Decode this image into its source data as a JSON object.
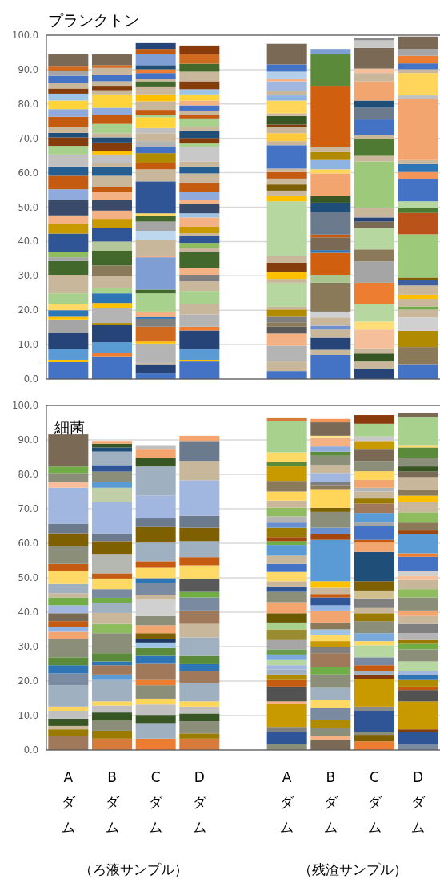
{
  "chart_data": [
    {
      "type": "bar",
      "title": "プランクトン",
      "stacked": true,
      "grid": "y",
      "ylim": [
        0,
        100
      ],
      "yticks": [
        {
          "value": 0,
          "label": "0.0"
        },
        {
          "value": 10,
          "label": "10.0"
        },
        {
          "value": 20,
          "label": "20.0"
        },
        {
          "value": 30,
          "label": "30.0"
        },
        {
          "value": 40,
          "label": "40.0"
        },
        {
          "value": 50,
          "label": "50.0"
        },
        {
          "value": 60,
          "label": "60.0"
        },
        {
          "value": 70,
          "label": "70.0"
        },
        {
          "value": 80,
          "label": "80.0"
        },
        {
          "value": 90,
          "label": "90.0"
        },
        {
          "value": 100,
          "label": "100.0"
        }
      ],
      "categories": [
        null,
        null,
        null,
        null,
        null,
        null,
        null,
        null,
        null
      ],
      "series": [
        {
          "values": [
            4.9,
            6.6,
            1.6,
            5.1,
            null,
            2.3,
            7.0,
            3.1,
            4.3
          ],
          "colors": [
            "#4472c4",
            "#4472c4",
            "#4472c4",
            "#4472c4",
            null,
            "#4472c4",
            "#4472c4",
            "#264478",
            "#4472c4"
          ]
        },
        {
          "values": [
            0.7,
            1.0,
            2.7,
            0.5,
            null,
            2.8,
            1.5,
            2.0,
            5.0
          ],
          "colors": [
            "#ffc000",
            "#ed7d31",
            "#264478",
            "#ffc000",
            null,
            "#c9b79c",
            "#c9b79c",
            "#c9b79c",
            "#8b7a5a"
          ]
        },
        {
          "values": [
            3.2,
            3.1,
            0.4,
            3.1,
            null,
            4.6,
            3.5,
            2.3,
            4.7
          ],
          "colors": [
            "#5b9bd5",
            "#5b9bd5",
            "#c9b79c",
            "#5b9bd5",
            null,
            "#b4b4b4",
            "#264478",
            "#375623",
            "#b08a00"
          ]
        },
        {
          "values": [
            4.6,
            5.0,
            5.6,
            5.4,
            null,
            3.5,
            2.4,
            1.5,
            3.9
          ],
          "colors": [
            "#264478",
            "#264478",
            "#b4b4b4",
            "#264478",
            null,
            "#f4b183",
            "#c9b79c",
            "#c9b79c",
            "#d0d0d0"
          ]
        },
        {
          "values": [
            3.9,
            0.6,
            0.6,
            1.1,
            null,
            2.0,
            1.1,
            5.5,
            2.3
          ],
          "colors": [
            "#a5a5a5",
            "#b08a00",
            "#ffc000",
            "#ed7d31",
            null,
            "#595959",
            "#6f8fd0",
            "#f4bf9a",
            "#c9b79c"
          ]
        },
        {
          "values": [
            1.0,
            4.3,
            4.3,
            3.6,
            null,
            1.3,
            2.4,
            2.3,
            0.9
          ],
          "colors": [
            "#ffc000",
            "#b4b4b4",
            "#d06a1e",
            "#b4b4b4",
            null,
            "#8b7a5a",
            "#c9b79c",
            "#ffde7a",
            "#70ad47"
          ]
        },
        {
          "values": [
            1.7,
            1.5,
            2.3,
            3.0,
            null,
            1.8,
            1.7,
            5.1,
            2.2
          ],
          "colors": [
            "#2e75b6",
            "#ffc000",
            "#808080",
            "#c9b79c",
            null,
            "#7f7f7f",
            "#d0d0d0",
            "#b7d7a0",
            "#c9b79c"
          ]
        },
        {
          "values": [
            1.8,
            2.8,
            0.5,
            3.8,
            null,
            1.9,
            8.4,
            6.2,
            1.2
          ],
          "colors": [
            "#ffd966",
            "#2e75b6",
            "#2e75b6",
            "#a9d18e",
            null,
            "#b08a00",
            "#8b7a5a",
            "#ed7d31",
            "#ffc000"
          ]
        },
        {
          "values": [
            3.1,
            1.5,
            1.6,
            2.8,
            null,
            0.8,
            2.3,
            6.2,
            2.7
          ],
          "colors": [
            "#a9d18e",
            "#a9d18e",
            "#f4b183",
            "#c9b79c",
            null,
            "#c9b79c",
            "#a9c48e",
            "#a5a5a5",
            "#c9b79c"
          ]
        },
        {
          "values": [
            5.4,
            3.5,
            5.3,
            1.9,
            null,
            7.0,
            6.4,
            3.5,
            1.5
          ],
          "colors": [
            "#c9b79c",
            "#c9b79c",
            "#a9d18e",
            "#808080",
            null,
            "#b7d7a0",
            "#d06010",
            "#8b7a5a",
            "#3b5fa0"
          ]
        },
        {
          "values": [
            4.0,
            3.1,
            1.1,
            1.9,
            null,
            1.1,
            0.8,
            6.2,
            0.8
          ],
          "colors": [
            "#43682b",
            "#8b7a5a",
            "#43682b",
            "#f4b183",
            null,
            "#c9b79c",
            "#2e75b6",
            "#b7d7a0",
            "#7f6000"
          ]
        },
        {
          "values": [
            1.1,
            4.3,
            9.4,
            4.7,
            null,
            2.0,
            3.7,
            1.9,
            12.6
          ],
          "colors": [
            "#a5a5a5",
            "#43682b",
            "#7f9fd4",
            "#43682b",
            null,
            "#ffc000",
            "#7a6a55",
            "#7a6a55",
            "#9dc97b"
          ]
        },
        {
          "values": [
            1.5,
            2.7,
            0.3,
            1.2,
            null,
            2.7,
            0.8,
            1.2,
            6.2
          ],
          "colors": [
            "#8fbc5f",
            "#b4c79a",
            "#f4b183",
            "#c9b79c",
            null,
            "#843c0c",
            "#c55a11",
            "#264478",
            "#b9531a"
          ]
        },
        {
          "values": [
            5.4,
            3.9,
            4.7,
            1.5,
            null,
            1.9,
            6.6,
            2.9,
            1.6
          ],
          "colors": [
            "#2f5597",
            "#2f5597",
            "#c9b79c",
            "#8fbc5f",
            null,
            "#c9b79c",
            "#6b7a8c",
            "#c9b79c",
            "#4e7a34"
          ]
        },
        {
          "values": [
            2.8,
            2.7,
            2.7,
            2.0,
            null,
            16.0,
            2.7,
            13.4,
            1.8
          ],
          "colors": [
            "#c99a00",
            "#c99a00",
            "#bdd7ee",
            "#2f5597",
            null,
            "#b7d7a0",
            "#1f4e79",
            "#9dc97b",
            "#b7d7a0"
          ]
        },
        {
          "values": [
            2.5,
            2.4,
            2.7,
            0.8,
            null,
            1.7,
            1.9,
            1.6,
            6.4
          ],
          "colors": [
            "#f4b183",
            "#f4b183",
            "#a5a5a5",
            "#c9b79c",
            null,
            "#ffc000",
            "#375623",
            "#c9b79c",
            "#4472c4"
          ]
        },
        {
          "values": [
            4.5,
            3.1,
            1.6,
            1.9,
            null,
            1.4,
            6.6,
            5.0,
            2.1
          ],
          "colors": [
            "#3a4a6b",
            "#3a4a6b",
            "#43682b",
            "#c99a00",
            null,
            "#c9b79c",
            "#f2a56f",
            "#4e7a34",
            "#f2955a"
          ]
        },
        {
          "values": [
            3.1,
            2.3,
            0.8,
            2.7,
            null,
            1.8,
            1.2,
            1.0,
            2.3
          ],
          "colors": [
            "#8faadc",
            "#f4b183",
            "#ffd966",
            "#f4b183",
            null,
            "#7f6000",
            "#ffd55a",
            "#c9b79c",
            "#2e75b6"
          ]
        },
        {
          "values": [
            3.9,
            1.5,
            9.3,
            1.2,
            null,
            1.7,
            2.7,
            4.6,
            1.2
          ],
          "colors": [
            "#c55a11",
            "#c55a11",
            "#2f5597",
            "#9dc3e6",
            null,
            "#c9b79c",
            "#8fb4e3",
            "#4472c4",
            "#c9b79c"
          ]
        },
        {
          "values": [
            2.7,
            3.2,
            3.5,
            2.7,
            null,
            1.9,
            2.3,
            3.4,
            17.7
          ],
          "colors": [
            "#255e91",
            "#c9b79c",
            "#c9b79c",
            "#3a4a6b",
            null,
            "#c55a11",
            "#b08a00",
            "#6b7a8c",
            "#f2a56f"
          ]
        },
        {
          "values": [
            3.5,
            2.7,
            1.9,
            1.3,
            null,
            1.0,
            1.6,
            2.1,
            1.1
          ],
          "colors": [
            "#c0c0c0",
            "#255e91",
            "#c55a11",
            "#f4b183",
            null,
            "#c9b79c",
            "#c9b79c",
            "#1f4e79",
            "#c0c0c0"
          ]
        },
        {
          "values": [
            2.5,
            1.0,
            2.8,
            2.2,
            null,
            6.8,
            17.7,
            5.6,
            6.5
          ],
          "colors": [
            "#a9d18e",
            "#c9b79c",
            "#b08a00",
            "#8faadc",
            null,
            "#4472c4",
            "#d06010",
            "#f2a56f",
            "#ffd55a"
          ]
        },
        {
          "values": [
            2.5,
            2.5,
            1.9,
            2.7,
            null,
            1.2,
            9.1,
            2.4,
            1.1
          ],
          "colors": [
            "#843c0c",
            "#c0c0c0",
            "#4472c4",
            "#c55a11",
            null,
            "#c9b79c",
            "#5b8a3a",
            "#c9b79c",
            "#c9b79c"
          ]
        },
        {
          "values": [
            1.3,
            1.1,
            1.6,
            2.7,
            null,
            2.3,
            1.6,
            1.3,
            1.7
          ],
          "colors": [
            "#1f4e79",
            "#ffc000",
            "#b4b4b4",
            "#c9b79c",
            null,
            "#ffc93c",
            "#7f9fd4",
            "#f4bf9a",
            "#4472c4"
          ]
        },
        {
          "values": [
            1.6,
            2.4,
            2.3,
            2.0,
            null,
            1.7,
            null,
            6.0,
            2.2
          ],
          "colors": [
            "#c9b79c",
            "#843c0c",
            "#c9b79c",
            "#255e91",
            null,
            "#c9b79c",
            null,
            "#7a6a55",
            "#ed7d31"
          ]
        },
        {
          "values": [
            3.1,
            1.5,
            1.5,
            1.5,
            null,
            0.8,
            null,
            2.2,
            2.0
          ],
          "colors": [
            "#c55a11",
            "#1f4e79",
            "#c0c0c0",
            "#c9b79c",
            null,
            "#843c0c",
            null,
            "#c8c8c8",
            "#a5a5a5"
          ]
        },
        {
          "values": [
            2.2,
            1.2,
            3.1,
            4.3,
            null,
            2.5,
            null,
            0.8,
            3.6
          ],
          "colors": [
            "#8faadc",
            "#c9b79c",
            "#ffd43b",
            "#c8c8c8",
            null,
            "#375623",
            null,
            "#8a8a8a",
            "#7a6a55"
          ]
        },
        {
          "values": [
            2.5,
            2.7,
            0.8,
            0.9,
            null,
            0.8,
            null,
            null,
            null
          ],
          "colors": [
            "#ffd43b",
            "#a9d18e",
            "#a9d18e",
            "#a9d18e",
            null,
            "#c9b79c",
            null,
            null,
            null
          ]
        },
        {
          "values": [
            2.0,
            2.7,
            1.4,
            1.6,
            null,
            3.7,
            null,
            null,
            null
          ],
          "colors": [
            "#9dc3e6",
            "#c55a11",
            "#c55a11",
            "#843c0c",
            null,
            "#ffd55a",
            null,
            null,
            null
          ]
        },
        {
          "values": [
            1.5,
            2.0,
            2.5,
            2.2,
            null,
            1.5,
            null,
            null,
            null
          ],
          "colors": [
            "#843c0c",
            "#8faadc",
            "#c9b79c",
            "#1f4e79",
            null,
            "#8fb4e3",
            null,
            null,
            null
          ]
        },
        {
          "values": [
            1.5,
            3.9,
            2.0,
            1.1,
            null,
            1.4,
            null,
            null,
            null
          ],
          "colors": [
            "#c9b79c",
            "#ffd43b",
            "#ffc000",
            "#c9b79c",
            null,
            "#c9b79c",
            null,
            null,
            null
          ]
        },
        {
          "values": [
            2.2,
            1.2,
            2.3,
            2.4,
            null,
            2.7,
            null,
            null,
            null
          ],
          "colors": [
            "#4472c4",
            "#c9b79c",
            "#c9b79c",
            "#a9d18e",
            null,
            "#a2b7e0",
            null,
            null,
            null
          ]
        },
        {
          "values": [
            1.5,
            1.3,
            1.5,
            1.1,
            null,
            0.8,
            null,
            null,
            null
          ],
          "colors": [
            "#a5a5a5",
            "#843c0c",
            "#43682b",
            "#c55a11",
            null,
            "#f4b183",
            null,
            null,
            null
          ]
        },
        {
          "values": [
            1.4,
            1.3,
            0.8,
            1.2,
            null,
            2.0,
            null,
            null,
            null
          ],
          "colors": [
            "#d06a1e",
            "#c9b79c",
            "#c9b79c",
            "#c9b79c",
            null,
            "#b4cfe9",
            null,
            null,
            null
          ]
        },
        {
          "values": [
            3.3,
            2.0,
            1.6,
            1.5,
            null,
            2.1,
            null,
            null,
            null
          ],
          "colors": [
            "#7a6a55",
            "#4472c4",
            "#4472c4",
            "#4472c4",
            null,
            "#4472c4",
            null,
            null,
            null
          ]
        },
        {
          "values": [
            null,
            1.9,
            1.1,
            1.4,
            null,
            6.0,
            null,
            null,
            null
          ],
          "colors": [
            null,
            "#c9b79c",
            "#ed7d31",
            "#f4b183",
            null,
            "#7a6a55",
            null,
            null,
            null
          ]
        },
        {
          "values": [
            null,
            0.8,
            1.2,
            1.8,
            null,
            null,
            null,
            null,
            null
          ],
          "colors": [
            null,
            "#d06a1e",
            "#1f4e79",
            "#ffd43b",
            null,
            null,
            null,
            null,
            null
          ]
        },
        {
          "values": [
            null,
            3.1,
            3.1,
            1.5,
            null,
            null,
            null,
            null,
            null
          ],
          "colors": [
            null,
            "#7a6a55",
            "#7f9fd4",
            "#9dc3e6",
            null,
            null,
            null,
            null,
            null
          ]
        },
        {
          "values": [
            null,
            null,
            1.6,
            2.3,
            null,
            null,
            null,
            null,
            null
          ],
          "colors": [
            null,
            null,
            "#c55a11",
            "#843c0c",
            null,
            null,
            null,
            null,
            null
          ]
        },
        {
          "values": [
            null,
            null,
            1.7,
            2.8,
            null,
            null,
            null,
            null,
            null
          ],
          "colors": [
            null,
            null,
            "#264478",
            "#c9b79c",
            null,
            null,
            null,
            null,
            null
          ]
        },
        {
          "values": [
            null,
            null,
            null,
            2.3,
            null,
            null,
            null,
            null,
            null
          ],
          "colors": [
            null,
            null,
            null,
            "#43682b",
            null,
            null,
            null,
            null,
            null
          ]
        },
        {
          "values": [
            null,
            null,
            null,
            2.7,
            null,
            null,
            null,
            null,
            null
          ],
          "colors": [
            null,
            null,
            null,
            "#d06a1e",
            null,
            null,
            null,
            null,
            null
          ]
        },
        {
          "values": [
            null,
            null,
            null,
            2.6,
            null,
            null,
            null,
            null,
            null
          ],
          "colors": [
            null,
            null,
            null,
            "#8b3a0c",
            null,
            null,
            null,
            null,
            null
          ]
        }
      ]
    },
    {
      "type": "bar",
      "title": "細菌",
      "stacked": true,
      "grid": "y",
      "ylim": [
        0,
        100
      ],
      "yticks": [
        {
          "value": 0,
          "label": "0.0"
        },
        {
          "value": 10,
          "label": "10.0"
        },
        {
          "value": 20,
          "label": "20.0"
        },
        {
          "value": 30,
          "label": "30.0"
        },
        {
          "value": 40,
          "label": "40.0"
        },
        {
          "value": 50,
          "label": "50.0"
        },
        {
          "value": 60,
          "label": "60.0"
        },
        {
          "value": 70,
          "label": "70.0"
        },
        {
          "value": 80,
          "label": "80.0"
        },
        {
          "value": 90,
          "label": "90.0"
        },
        {
          "value": 100,
          "label": "100.0"
        }
      ],
      "categories": [
        "Aダム",
        "Bダム",
        "Cダム",
        "Dダム",
        null,
        "Aダム",
        "Bダム",
        "Cダム",
        "Dダム"
      ],
      "annotations": [
        "（ろ液サンプル）",
        "（残渣サンプル）"
      ],
      "series": [
        {
          "values": [
            4.0,
            3.3,
            3.3,
            3.3,
            null,
            1.7,
            2.9,
            2.5,
            1.7
          ],
          "colors": [
            "#a0785a",
            "#d87a3a",
            "#ed7d31",
            "#d87a3a",
            null,
            "#8b8f7a",
            "#7a6a55",
            "#ed7d31",
            "#7a8aa0"
          ]
        },
        {
          "values": [
            2.0,
            2.3,
            4.5,
            1.5,
            null,
            3.5,
            1.1,
            1.9,
            3.5
          ],
          "colors": [
            "#9a7a00",
            "#9a7a00",
            "#9fb0c0",
            "#9a7a00",
            null,
            "#2f5597",
            "#f4b183",
            "#7f6000",
            "#2f5597"
          ]
        },
        {
          "values": [
            1.0,
            2.9,
            2.4,
            3.5,
            null,
            1.5,
            2.4,
            0.8,
            0.8
          ],
          "colors": [
            "#c9b79c",
            "#8b8f7a",
            "#375623",
            "#8b8f7a",
            null,
            "#7f7f7f",
            "#8b8f7a",
            "#8b8f7a",
            "#843c0c"
          ]
        },
        {
          "values": [
            2.1,
            2.4,
            3.0,
            2.3,
            null,
            6.6,
            2.3,
            6.2,
            8.1
          ],
          "colors": [
            "#375623",
            "#375623",
            "#c0c0c0",
            "#375623",
            null,
            "#c99a00",
            "#b08a00",
            "#2f5597",
            "#c99a00"
          ]
        },
        {
          "values": [
            2.3,
            2.0,
            1.7,
            2.0,
            null,
            0.8,
            3.5,
            1.2,
            3.3
          ],
          "colors": [
            "#c0c0c0",
            "#c0c0c0",
            "#ffd55a",
            "#c0c0c0",
            null,
            "#f4b183",
            "#7a8aa0",
            "#8a8a8a",
            "#525252"
          ]
        },
        {
          "values": [
            1.2,
            1.2,
            3.9,
            1.5,
            null,
            4.3,
            2.3,
            8.1,
            1.0
          ],
          "colors": [
            "#ffd55a",
            "#ffd55a",
            "#8b8f7a",
            "#ffd55a",
            null,
            "#525252",
            "#ffd966",
            "#c99a00",
            "#c55a11"
          ]
        },
        {
          "values": [
            6.2,
            6.2,
            1.5,
            5.4,
            null,
            1.9,
            3.5,
            1.2,
            1.9
          ],
          "colors": [
            "#9fb0c0",
            "#9fb0c0",
            "#ed7d31",
            "#9fb0c0",
            null,
            "#c55a11",
            "#9fb0c0",
            "#843c0c",
            "#b08a00"
          ]
        },
        {
          "values": [
            3.4,
            1.6,
            4.7,
            3.5,
            null,
            1.6,
            3.9,
            1.1,
            1.4
          ],
          "colors": [
            "#7a8aa0",
            "#5b9bd5",
            "#a0785a",
            "#a0785a",
            null,
            "#b08a00",
            "#8b8f7a",
            "#9fb0c0",
            "#2e75b6"
          ]
        },
        {
          "values": [
            2.4,
            2.7,
            2.3,
            1.9,
            null,
            1.5,
            2.1,
            1.6,
            1.3
          ],
          "colors": [
            "#2e75b6",
            "#a0785a",
            "#2e75b6",
            "#2e75b6",
            null,
            "#9fb0c0",
            "#70ad47",
            "#c55a11",
            "#a2b7e0"
          ]
        },
        {
          "values": [
            2.3,
            1.1,
            2.3,
            2.4,
            null,
            1.2,
            4.1,
            2.3,
            2.7
          ],
          "colors": [
            "#5b8a3a",
            "#2e75b6",
            "#5b8a3a",
            "#5b8a3a",
            null,
            "#a2b7e0",
            "#a0785a",
            "#7a8aa0",
            "#b7d7a0"
          ]
        },
        {
          "values": [
            5.4,
            2.4,
            1.6,
            5.4,
            null,
            1.5,
            1.9,
            3.5,
            3.5
          ],
          "colors": [
            "#8b8f7a",
            "#5b8a3a",
            "#9dc3e6",
            "#9fb0c0",
            null,
            "#b7d7a0",
            "#808080",
            "#b7d7a0",
            "#8b8f7a"
          ]
        },
        {
          "values": [
            2.0,
            5.8,
            1.1,
            3.9,
            null,
            1.6,
            1.6,
            1.2,
            1.6
          ],
          "colors": [
            "#f2a56f",
            "#8b8f7a",
            "#1f3864",
            "#c9b79c",
            null,
            "#7aaadc",
            "#c99a00",
            "#ffd966",
            "#70ad47"
          ]
        },
        {
          "values": [
            1.5,
            2.7,
            1.6,
            3.9,
            null,
            1.5,
            1.9,
            2.3,
            1.1
          ],
          "colors": [
            "#8fb4e3",
            "#8fbc5f",
            "#7f6000",
            "#a0785a",
            null,
            "#6b9a4a",
            "#ffd966",
            "#7aaadc",
            "#9a7a00"
          ]
        },
        {
          "values": [
            1.6,
            3.2,
            2.3,
            3.8,
            null,
            2.7,
            1.5,
            3.5,
            2.0
          ],
          "colors": [
            "#c55a11",
            "#c9b79c",
            "#f2a56f",
            "#7a8aa0",
            null,
            "#a5a5a5",
            "#9dc3e6",
            "#8b8f7a",
            "#b4b4b4"
          ]
        },
        {
          "values": [
            2.3,
            3.0,
            2.7,
            1.6,
            null,
            3.1,
            2.0,
            2.3,
            2.7
          ],
          "colors": [
            "#7a6a55",
            "#9fb0c0",
            "#8b8f7a",
            "#70ad47",
            null,
            "#9a8a30",
            "#8b7a5a",
            "#9a7a00",
            "#808080"
          ]
        },
        {
          "values": [
            2.3,
            1.4,
            4.7,
            3.9,
            null,
            2.0,
            3.5,
            1.5,
            2.3
          ],
          "colors": [
            "#a2b7e0",
            "#70ad47",
            "#d0d0d0",
            "#595959",
            null,
            "#a9d18e",
            "#f2a56f",
            "#c9b79c",
            "#c9b79c"
          ]
        },
        {
          "values": [
            2.3,
            2.5,
            1.5,
            3.8,
            null,
            2.7,
            1.5,
            2.8,
            1.6
          ],
          "colors": [
            "#70ad47",
            "#7a8aa0",
            "#c9b79c",
            "#ffd966",
            null,
            "#6b5a00",
            "#8fb4e3",
            "#808080",
            "#f2a56f"
          ]
        },
        {
          "values": [
            1.2,
            3.1,
            3.5,
            2.4,
            null,
            3.2,
            2.3,
            2.3,
            3.8
          ],
          "colors": [
            "#c9b79c",
            "#ffd966",
            "#7a8aa0",
            "#c55a11",
            null,
            "#f2a56f",
            "#2f5597",
            "#d0c090",
            "#8b8f7a"
          ]
        },
        {
          "values": [
            2.7,
            1.5,
            1.3,
            4.6,
            null,
            3.0,
            1.0,
            2.7,
            2.4
          ],
          "colors": [
            "#9fb0c0",
            "#c55a11",
            "#2e75b6",
            "#9fb0c0",
            null,
            "#8b8f7a",
            "#c55a11",
            "#7f6000",
            "#8fbc5f"
          ]
        },
        {
          "values": [
            3.9,
            5.4,
            3.0,
            3.9,
            null,
            1.5,
            1.8,
            8.5,
            2.7
          ],
          "colors": [
            "#ffd966",
            "#b4b8b0",
            "#ffd966",
            "#7f6000",
            null,
            "#2f5597",
            "#c9b79c",
            "#1f4e79",
            "#c9b79c"
          ]
        },
        {
          "values": [
            1.9,
            3.9,
            1.9,
            3.5,
            null,
            1.6,
            1.9,
            2.7,
            1.1
          ],
          "colors": [
            "#c55a11",
            "#7f6000",
            "#c55a11",
            "#6b7a8c",
            null,
            "#c9b79c",
            "#ffc000",
            "#f2a56f",
            "#f4bf9a"
          ]
        },
        {
          "values": [
            5.1,
            2.2,
            5.4,
            10.3,
            null,
            2.7,
            12.0,
            0.8,
            1.6
          ],
          "colors": [
            "#8b8f7a",
            "#6b7a8c",
            "#9fb0c0",
            "#a2b7e0",
            null,
            "#ffd966",
            "#5b9bd5",
            "#c55a11",
            "#d0d0d0"
          ]
        },
        {
          "values": [
            3.8,
            9.1,
            4.5,
            5.6,
            null,
            2.3,
            1.6,
            3.9,
            4.0
          ],
          "colors": [
            "#7f6000",
            "#a2b7e0",
            "#7f6000",
            "#c9b79c",
            null,
            "#4472c4",
            "#a5460e",
            "#4472c4",
            "#4472c4"
          ]
        },
        {
          "values": [
            2.8,
            4.2,
            2.5,
            5.8,
            null,
            2.4,
            1.9,
            1.1,
            1.0
          ],
          "colors": [
            "#6b7a8c",
            "#c0cfa8",
            "#6b7a8c",
            "#6b7a8c",
            null,
            "#c9b79c",
            "#6a8fd0",
            "#a5a5a5",
            "#ed7d31"
          ]
        },
        {
          "values": [
            10.4,
            1.6,
            6.6,
            1.5,
            null,
            3.1,
            4.6,
            2.8,
            5.5
          ],
          "colors": [
            "#a2b7e0",
            "#5b9bd5",
            "#a2b7e0",
            "#f2a56f",
            null,
            "#5b9bd5",
            "#8b8f7a",
            "#5b9bd5",
            "#5b9bd5"
          ]
        },
        {
          "values": [
            1.6,
            3.1,
            8.5,
            null,
            null,
            1.1,
            1.2,
            2.7,
            1.1
          ],
          "colors": [
            "#f4bf9a",
            "#8b8f7a",
            "#9fb0c0",
            null,
            null,
            "#70ad47",
            "#7f6000",
            "#a0785a",
            "#9e480e"
          ]
        },
        {
          "values": [
            2.7,
            1.9,
            2.4,
            null,
            null,
            1.2,
            5.4,
            1.5,
            2.3
          ],
          "colors": [
            "#8b8f7a",
            "#2f5597",
            "#375623",
            null,
            null,
            "#9e480e",
            "#ffd55a",
            "#9a7a00",
            "#8b7a5a"
          ]
        },
        {
          "values": [
            1.8,
            3.9,
            2.7,
            null,
            null,
            2.7,
            1.2,
            2.0,
            3.0
          ],
          "colors": [
            "#70ad47",
            "#9fb0c0",
            "#f2a56f",
            null,
            null,
            "#9a7a00",
            "#8b7a5a",
            "#c9b79c",
            "#8fbc5f"
          ]
        },
        {
          "values": [
            9.4,
            1.2,
            1.1,
            null,
            null,
            1.5,
            0.8,
            1.1,
            2.9
          ],
          "colors": [
            "#7a6a55",
            "#1f4e79",
            "#c0c0c0",
            null,
            null,
            "#6a8fd0",
            "#7f7f7f",
            "#b4b4b4",
            "#c9b79c"
          ]
        },
        {
          "values": [
            null,
            1.1,
            null,
            null,
            null,
            1.8,
            2.7,
            2.3,
            1.9
          ],
          "colors": [
            null,
            "#375623",
            null,
            null,
            null,
            "#b4b4b4",
            "#a2b7e0",
            "#f2a56f",
            "#ffc000"
          ]
        },
        {
          "values": [
            null,
            0.8,
            null,
            null,
            null,
            2.5,
            2.3,
            2.5,
            1.9
          ],
          "colors": [
            null,
            "#f2a56f",
            null,
            null,
            null,
            "#8fbc5f",
            "#c9b79c",
            "#ffd55a",
            "#8b7a5a"
          ]
        },
        {
          "values": [
            null,
            null,
            null,
            null,
            null,
            2.1,
            2.7,
            3.0,
            3.5
          ],
          "colors": [
            null,
            null,
            null,
            null,
            null,
            "#c9b79c",
            "#8b8f7a",
            "#8b8f7a",
            "#c9b79c"
          ]
        },
        {
          "values": [
            null,
            null,
            null,
            null,
            null,
            2.6,
            1.2,
            3.5,
            1.6
          ],
          "colors": [
            null,
            null,
            null,
            null,
            null,
            "#ffd55a",
            "#5b8a3a",
            "#7a6a55",
            "#7a6a55"
          ]
        },
        {
          "values": [
            null,
            null,
            null,
            null,
            null,
            3.1,
            1.5,
            2.3,
            1.5
          ],
          "colors": [
            null,
            null,
            null,
            null,
            null,
            "#8b7a5a",
            "#8faadc",
            "#c99a00",
            "#375623"
          ]
        },
        {
          "values": [
            null,
            null,
            null,
            null,
            null,
            4.2,
            2.4,
            1.3,
            2.4
          ],
          "colors": [
            null,
            null,
            null,
            null,
            null,
            "#c99a00",
            "#f4b183",
            "#c8c8c8",
            "#8b8f7a"
          ]
        },
        {
          "values": [
            null,
            null,
            null,
            null,
            null,
            1.2,
            0.7,
            3.7,
            3.1
          ],
          "colors": [
            null,
            null,
            null,
            null,
            null,
            "#5b8a3a",
            "#ffe28a",
            "#a9d18e",
            "#5b8a3a"
          ]
        },
        {
          "values": [
            null,
            null,
            null,
            null,
            null,
            2.9,
            3.9,
            2.5,
            0.7
          ],
          "colors": [
            null,
            null,
            null,
            null,
            null,
            "#ffd966",
            "#7a6a55",
            "#8b3a0c",
            "#ffd966"
          ]
        },
        {
          "values": [
            null,
            null,
            null,
            null,
            null,
            9.1,
            1.0,
            null,
            8.2
          ],
          "colors": [
            null,
            null,
            null,
            null,
            null,
            "#a9d18e",
            "#f2955a",
            null,
            "#a9d18e"
          ]
        },
        {
          "values": [
            null,
            null,
            null,
            null,
            null,
            0.8,
            null,
            null,
            1.1
          ],
          "colors": [
            null,
            null,
            null,
            null,
            null,
            "#d87a3a",
            null,
            null,
            "#7a6a55"
          ]
        }
      ]
    }
  ]
}
